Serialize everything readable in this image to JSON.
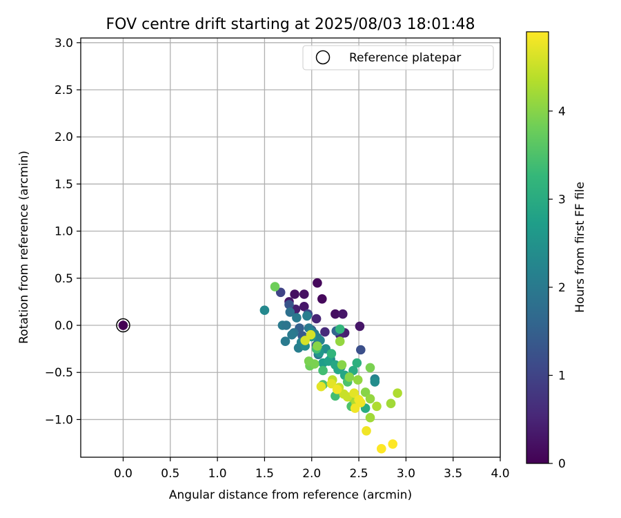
{
  "chart_data": {
    "type": "scatter",
    "title": "FOV centre drift starting at 2025/08/03 18:01:48",
    "xlabel": "Angular distance from reference (arcmin)",
    "ylabel": "Rotation from reference (arcmin)",
    "xlim": [
      -0.45,
      4.0
    ],
    "ylim": [
      -1.4,
      3.05
    ],
    "xticks": [
      0.0,
      0.5,
      1.0,
      1.5,
      2.0,
      2.5,
      3.0,
      3.5,
      4.0
    ],
    "xtick_labels": [
      "0.0",
      "0.5",
      "1.0",
      "1.5",
      "2.0",
      "2.5",
      "3.0",
      "3.5",
      "4.0"
    ],
    "yticks": [
      -1.0,
      -0.5,
      0.0,
      0.5,
      1.0,
      1.5,
      2.0,
      2.5,
      3.0
    ],
    "ytick_labels": [
      "−1.0",
      "−0.5",
      "0.0",
      "0.5",
      "1.0",
      "1.5",
      "2.0",
      "2.5",
      "3.0"
    ],
    "grid": true,
    "legend": {
      "position": "top-right",
      "entries": [
        "Reference platepar"
      ]
    },
    "reference_point": {
      "x": 0.0,
      "y": 0.0,
      "c": 0.0
    },
    "colorbar": {
      "label": "Hours from first FF file",
      "min": 0,
      "max": 4.9,
      "ticks": [
        0,
        1,
        2,
        3,
        4
      ],
      "tick_labels": [
        "0",
        "1",
        "2",
        "3",
        "4"
      ],
      "colormap": "viridis",
      "colors": [
        "#440154",
        "#482878",
        "#3e4989",
        "#31688e",
        "#26828e",
        "#1f9e89",
        "#35b779",
        "#6ece58",
        "#b5de2b",
        "#fde725"
      ]
    },
    "points": [
      {
        "x": 2.06,
        "y": 0.45,
        "c": 0.1
      },
      {
        "x": 2.11,
        "y": 0.28,
        "c": 0.1
      },
      {
        "x": 1.82,
        "y": 0.33,
        "c": 0.2
      },
      {
        "x": 1.92,
        "y": 0.33,
        "c": 0.2
      },
      {
        "x": 1.76,
        "y": 0.25,
        "c": 0.3
      },
      {
        "x": 1.92,
        "y": 0.2,
        "c": 0.3
      },
      {
        "x": 1.83,
        "y": 0.17,
        "c": 0.4
      },
      {
        "x": 2.25,
        "y": 0.12,
        "c": 0.2
      },
      {
        "x": 2.33,
        "y": 0.12,
        "c": 0.3
      },
      {
        "x": 2.05,
        "y": 0.07,
        "c": 0.5
      },
      {
        "x": 2.51,
        "y": -0.01,
        "c": 0.3
      },
      {
        "x": 2.35,
        "y": -0.08,
        "c": 0.4
      },
      {
        "x": 2.3,
        "y": -0.1,
        "c": 0.5
      },
      {
        "x": 2.14,
        "y": -0.07,
        "c": 0.6
      },
      {
        "x": 1.67,
        "y": 0.35,
        "c": 1.0
      },
      {
        "x": 1.76,
        "y": 0.22,
        "c": 1.3
      },
      {
        "x": 1.96,
        "y": 0.12,
        "c": 1.1
      },
      {
        "x": 2.52,
        "y": -0.26,
        "c": 1.2
      },
      {
        "x": 2.0,
        "y": -0.05,
        "c": 1.4
      },
      {
        "x": 1.87,
        "y": -0.03,
        "c": 1.5
      },
      {
        "x": 1.9,
        "y": -0.11,
        "c": 1.4
      },
      {
        "x": 2.26,
        "y": -0.06,
        "c": 1.6
      },
      {
        "x": 2.05,
        "y": -0.21,
        "c": 1.6
      },
      {
        "x": 1.5,
        "y": 0.16,
        "c": 2.3
      },
      {
        "x": 1.69,
        "y": 0.0,
        "c": 2.0
      },
      {
        "x": 1.73,
        "y": 0.0,
        "c": 1.9
      },
      {
        "x": 1.77,
        "y": 0.14,
        "c": 1.8
      },
      {
        "x": 1.81,
        "y": -0.08,
        "c": 1.9
      },
      {
        "x": 1.79,
        "y": -0.1,
        "c": 2.0
      },
      {
        "x": 1.84,
        "y": 0.08,
        "c": 2.0
      },
      {
        "x": 1.86,
        "y": -0.24,
        "c": 2.1
      },
      {
        "x": 1.72,
        "y": -0.17,
        "c": 2.0
      },
      {
        "x": 1.95,
        "y": 0.1,
        "c": 2.1
      },
      {
        "x": 1.97,
        "y": -0.03,
        "c": 2.0
      },
      {
        "x": 2.0,
        "y": -0.07,
        "c": 2.2
      },
      {
        "x": 2.03,
        "y": -0.09,
        "c": 2.1
      },
      {
        "x": 2.06,
        "y": -0.13,
        "c": 2.1
      },
      {
        "x": 2.07,
        "y": -0.31,
        "c": 2.0
      },
      {
        "x": 2.09,
        "y": -0.16,
        "c": 2.2
      },
      {
        "x": 1.89,
        "y": -0.18,
        "c": 2.2
      },
      {
        "x": 1.93,
        "y": -0.22,
        "c": 2.4
      },
      {
        "x": 2.15,
        "y": -0.25,
        "c": 2.4
      },
      {
        "x": 2.2,
        "y": -0.36,
        "c": 2.4
      },
      {
        "x": 2.31,
        "y": -0.44,
        "c": 2.4
      },
      {
        "x": 2.67,
        "y": -0.57,
        "c": 2.2
      },
      {
        "x": 2.67,
        "y": -0.6,
        "c": 2.4
      },
      {
        "x": 2.0,
        "y": -0.12,
        "c": 2.6
      },
      {
        "x": 2.08,
        "y": -0.29,
        "c": 2.6
      },
      {
        "x": 2.12,
        "y": -0.4,
        "c": 2.7
      },
      {
        "x": 2.18,
        "y": -0.38,
        "c": 2.8
      },
      {
        "x": 2.25,
        "y": -0.42,
        "c": 2.9
      },
      {
        "x": 2.28,
        "y": -0.47,
        "c": 2.9
      },
      {
        "x": 2.35,
        "y": -0.53,
        "c": 2.9
      },
      {
        "x": 2.44,
        "y": -0.48,
        "c": 3.0
      },
      {
        "x": 2.48,
        "y": -0.4,
        "c": 3.1
      },
      {
        "x": 2.57,
        "y": -0.88,
        "c": 3.0
      },
      {
        "x": 2.3,
        "y": -0.04,
        "c": 3.2
      },
      {
        "x": 2.21,
        "y": -0.3,
        "c": 3.2
      },
      {
        "x": 2.05,
        "y": -0.25,
        "c": 3.4
      },
      {
        "x": 2.12,
        "y": -0.48,
        "c": 3.4
      },
      {
        "x": 2.25,
        "y": -0.75,
        "c": 3.4
      },
      {
        "x": 2.12,
        "y": -0.63,
        "c": 3.5
      },
      {
        "x": 2.38,
        "y": -0.6,
        "c": 3.5
      },
      {
        "x": 2.42,
        "y": -0.86,
        "c": 3.5
      },
      {
        "x": 1.61,
        "y": 0.41,
        "c": 3.8
      },
      {
        "x": 1.98,
        "y": -0.43,
        "c": 3.8
      },
      {
        "x": 1.97,
        "y": -0.38,
        "c": 3.9
      },
      {
        "x": 2.03,
        "y": -0.41,
        "c": 3.9
      },
      {
        "x": 2.06,
        "y": -0.22,
        "c": 4.0
      },
      {
        "x": 2.3,
        "y": -0.17,
        "c": 4.1
      },
      {
        "x": 2.32,
        "y": -0.42,
        "c": 4.0
      },
      {
        "x": 2.4,
        "y": -0.55,
        "c": 4.0
      },
      {
        "x": 2.49,
        "y": -0.58,
        "c": 4.1
      },
      {
        "x": 2.57,
        "y": -0.71,
        "c": 4.0
      },
      {
        "x": 2.62,
        "y": -0.45,
        "c": 3.9
      },
      {
        "x": 2.62,
        "y": -0.78,
        "c": 4.1
      },
      {
        "x": 2.62,
        "y": -0.98,
        "c": 4.2
      },
      {
        "x": 2.43,
        "y": -0.77,
        "c": 4.2
      },
      {
        "x": 2.47,
        "y": -0.83,
        "c": 4.3
      },
      {
        "x": 2.69,
        "y": -0.86,
        "c": 4.3
      },
      {
        "x": 2.84,
        "y": -0.83,
        "c": 4.2
      },
      {
        "x": 2.91,
        "y": -0.72,
        "c": 4.3
      },
      {
        "x": 2.22,
        "y": -0.58,
        "c": 4.4
      },
      {
        "x": 2.29,
        "y": -0.66,
        "c": 4.5
      },
      {
        "x": 2.34,
        "y": -0.73,
        "c": 4.5
      },
      {
        "x": 2.38,
        "y": -0.76,
        "c": 4.5
      },
      {
        "x": 1.99,
        "y": -0.1,
        "c": 4.6
      },
      {
        "x": 1.93,
        "y": -0.16,
        "c": 4.6
      },
      {
        "x": 2.1,
        "y": -0.65,
        "c": 4.7
      },
      {
        "x": 2.21,
        "y": -0.62,
        "c": 4.7
      },
      {
        "x": 2.45,
        "y": -0.72,
        "c": 4.7
      },
      {
        "x": 2.5,
        "y": -0.79,
        "c": 4.8
      },
      {
        "x": 2.52,
        "y": -0.82,
        "c": 4.8
      },
      {
        "x": 2.46,
        "y": -0.88,
        "c": 4.8
      },
      {
        "x": 2.58,
        "y": -1.12,
        "c": 4.8
      },
      {
        "x": 2.74,
        "y": -1.31,
        "c": 4.9
      },
      {
        "x": 2.86,
        "y": -1.26,
        "c": 4.9
      },
      {
        "x": 2.27,
        "y": -0.68,
        "c": 4.8
      }
    ]
  }
}
